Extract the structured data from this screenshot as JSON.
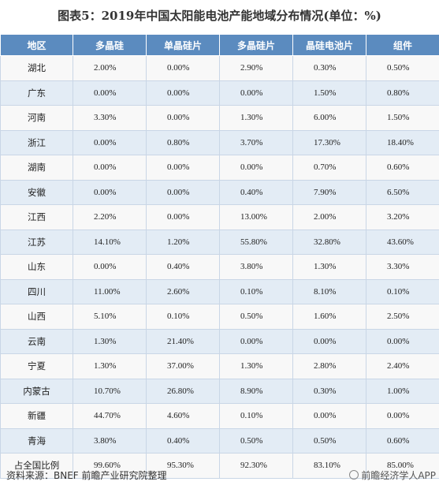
{
  "title": "图表5：2019年中国太阳能电池产能地域分布情况(单位：%)",
  "table": {
    "headers": [
      "地区",
      "多晶硅",
      "单晶硅片",
      "多晶硅片",
      "晶硅电池片",
      "组件"
    ],
    "rows": [
      [
        "湖北",
        "2.00%",
        "0.00%",
        "2.90%",
        "0.30%",
        "0.50%"
      ],
      [
        "广东",
        "0.00%",
        "0.00%",
        "0.00%",
        "1.50%",
        "0.80%"
      ],
      [
        "河南",
        "3.30%",
        "0.00%",
        "1.30%",
        "6.00%",
        "1.50%"
      ],
      [
        "浙江",
        "0.00%",
        "0.80%",
        "3.70%",
        "17.30%",
        "18.40%"
      ],
      [
        "湖南",
        "0.00%",
        "0.00%",
        "0.00%",
        "0.70%",
        "0.60%"
      ],
      [
        "安徽",
        "0.00%",
        "0.00%",
        "0.40%",
        "7.90%",
        "6.50%"
      ],
      [
        "江西",
        "2.20%",
        "0.00%",
        "13.00%",
        "2.00%",
        "3.20%"
      ],
      [
        "江苏",
        "14.10%",
        "1.20%",
        "55.80%",
        "32.80%",
        "43.60%"
      ],
      [
        "山东",
        "0.00%",
        "0.40%",
        "3.80%",
        "1.30%",
        "3.30%"
      ],
      [
        "四川",
        "11.00%",
        "2.60%",
        "0.10%",
        "8.10%",
        "0.10%"
      ],
      [
        "山西",
        "5.10%",
        "0.10%",
        "0.50%",
        "1.60%",
        "2.50%"
      ],
      [
        "云南",
        "1.30%",
        "21.40%",
        "0.00%",
        "0.00%",
        "0.00%"
      ],
      [
        "宁夏",
        "1.30%",
        "37.00%",
        "1.30%",
        "2.80%",
        "2.40%"
      ],
      [
        "内蒙古",
        "10.70%",
        "26.80%",
        "8.90%",
        "0.30%",
        "1.00%"
      ],
      [
        "新疆",
        "44.70%",
        "4.60%",
        "0.10%",
        "0.00%",
        "0.00%"
      ],
      [
        "青海",
        "3.80%",
        "0.40%",
        "0.50%",
        "0.50%",
        "0.60%"
      ],
      [
        "占全国比例",
        "99.60%",
        "95.30%",
        "92.30%",
        "83.10%",
        "85.00%"
      ]
    ]
  },
  "footer": {
    "source": "资料来源：BNEF 前瞻产业研究院整理",
    "brand": "前瞻经济学人APP"
  },
  "colors": {
    "header_bg": "#5b8bbf",
    "row_odd_bg": "#e3ecf5",
    "row_even_bg": "#f8f8f8"
  },
  "icons": {
    "brand": "brand-logo-icon"
  }
}
